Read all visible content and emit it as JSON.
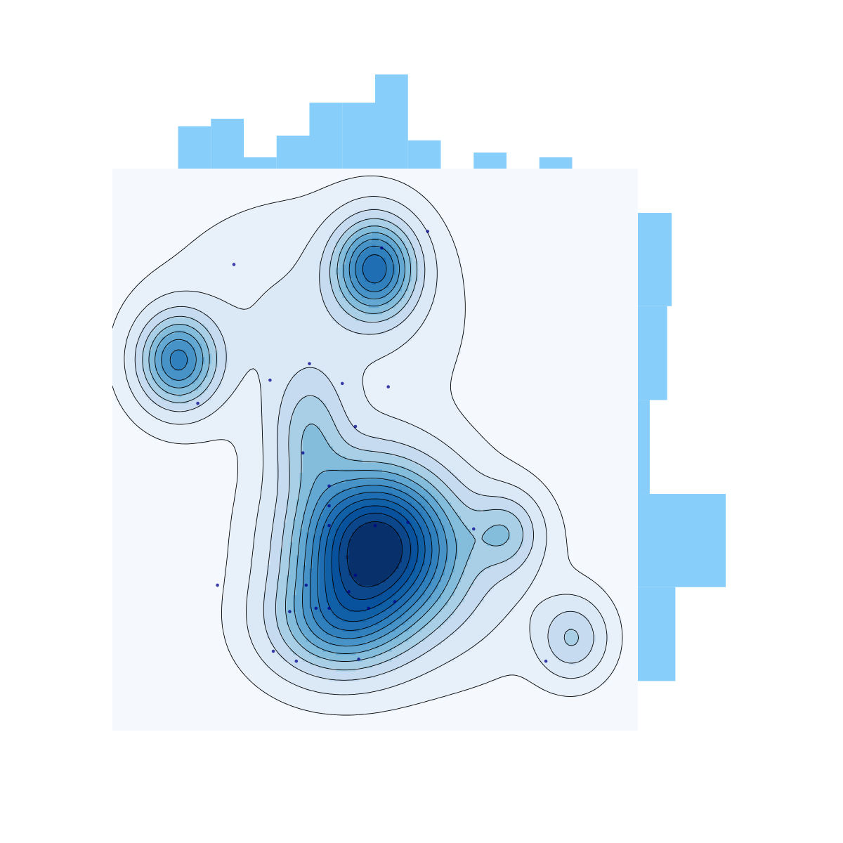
{
  "chart_data": {
    "type": "joint_kde_contour",
    "title": "",
    "xlabel": "",
    "ylabel": "",
    "xlim": [
      0,
      8
    ],
    "ylim": [
      0,
      8.5
    ],
    "grid": false,
    "legend": "none",
    "colors": {
      "plot_background": "#f5f9fe",
      "marginal_bars": "#87cefa",
      "contour_lines": "#000000",
      "points": "#00008b",
      "palette": [
        "#e8f1fa",
        "#dbe9f6",
        "#c6dbef",
        "#a8cfe5",
        "#84bcdb",
        "#63a8d3",
        "#4792c6",
        "#3080bd",
        "#1f6eb3",
        "#1060a8",
        "#08519c",
        "#0b478a",
        "#08306b"
      ]
    },
    "main": {
      "density_peaks": [
        {
          "x": 4.0,
          "y": 2.8,
          "level": 13
        },
        {
          "x": 4.0,
          "y": 7.0,
          "level": 8
        },
        {
          "x": 1.0,
          "y": 5.6,
          "level": 7
        },
        {
          "x": 7.0,
          "y": 1.4,
          "level": 3
        },
        {
          "x": 6.0,
          "y": 3.0,
          "level": 3
        }
      ],
      "points": [
        {
          "x": 1.85,
          "y": 7.05
        },
        {
          "x": 4.1,
          "y": 7.3
        },
        {
          "x": 4.8,
          "y": 7.55
        },
        {
          "x": 3.0,
          "y": 5.55
        },
        {
          "x": 2.4,
          "y": 5.3
        },
        {
          "x": 3.5,
          "y": 5.25
        },
        {
          "x": 4.2,
          "y": 5.2
        },
        {
          "x": 1.3,
          "y": 4.95
        },
        {
          "x": 3.7,
          "y": 4.6
        },
        {
          "x": 2.9,
          "y": 4.2
        },
        {
          "x": 3.3,
          "y": 3.7
        },
        {
          "x": 3.3,
          "y": 3.4
        },
        {
          "x": 3.3,
          "y": 3.1
        },
        {
          "x": 4.0,
          "y": 3.1
        },
        {
          "x": 4.5,
          "y": 3.15
        },
        {
          "x": 5.5,
          "y": 3.05
        },
        {
          "x": 3.7,
          "y": 2.35
        },
        {
          "x": 2.95,
          "y": 2.2
        },
        {
          "x": 1.6,
          "y": 2.2
        },
        {
          "x": 3.6,
          "y": 2.1
        },
        {
          "x": 4.3,
          "y": 1.95
        },
        {
          "x": 3.1,
          "y": 1.85
        },
        {
          "x": 3.3,
          "y": 1.85
        },
        {
          "x": 3.9,
          "y": 1.85
        },
        {
          "x": 2.7,
          "y": 1.8
        },
        {
          "x": 2.45,
          "y": 1.2
        },
        {
          "x": 2.8,
          "y": 1.05
        },
        {
          "x": 3.75,
          "y": 1.08
        },
        {
          "x": 6.6,
          "y": 1.05
        }
      ]
    },
    "marginal_x": {
      "bins": [
        [
          1.0,
          1.5
        ],
        [
          1.5,
          2.0
        ],
        [
          2.0,
          2.5
        ],
        [
          2.5,
          3.0
        ],
        [
          3.0,
          3.5
        ],
        [
          3.5,
          4.0
        ],
        [
          4.0,
          4.5
        ],
        [
          4.5,
          5.0
        ],
        [
          5.0,
          5.5
        ],
        [
          5.5,
          6.0
        ],
        [
          6.0,
          6.5
        ],
        [
          6.5,
          7.0
        ]
      ],
      "counts": [
        4.5,
        5.3,
        1.2,
        3.5,
        7.0,
        7.0,
        10.0,
        3.0,
        0,
        1.7,
        0,
        1.2
      ]
    },
    "marginal_y": {
      "bins": [
        [
          0.75,
          2.17
        ],
        [
          2.17,
          3.58
        ],
        [
          3.58,
          5.0
        ],
        [
          5.0,
          6.42
        ],
        [
          6.42,
          7.83
        ]
      ],
      "counts": [
        4.1,
        9.6,
        1.3,
        3.2,
        3.7
      ]
    }
  }
}
